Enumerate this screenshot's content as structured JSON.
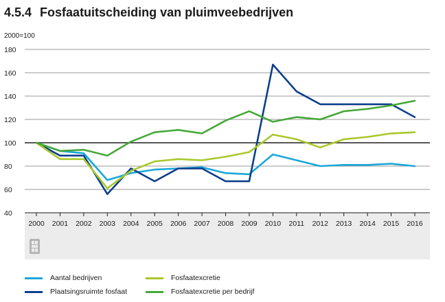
{
  "title": {
    "number": "4.5.4",
    "text": "Fosfaatuitscheiding van pluimveebedrijven"
  },
  "chart_data": {
    "type": "line",
    "ylabel": "2000=100",
    "xlabel": "",
    "ylim": [
      40,
      180
    ],
    "yticks": [
      40,
      60,
      80,
      100,
      120,
      140,
      160,
      180
    ],
    "reference_line": 100,
    "grid": "horizontal",
    "legend_position": "bottom",
    "x": [
      "2000",
      "2001",
      "2002",
      "2003",
      "2004",
      "2005",
      "2006",
      "2007",
      "2008",
      "2009",
      "2010",
      "2011",
      "2012",
      "2013",
      "2014",
      "2015",
      "2016"
    ],
    "series": [
      {
        "name": "Aantal bedrijven",
        "color": "#1aa7da",
        "values": [
          100,
          93,
          91,
          68,
          74,
          77,
          78,
          79,
          74,
          73,
          90,
          85,
          80,
          81,
          81,
          82,
          80
        ]
      },
      {
        "name": "Plaatsingsruimte fosfaat",
        "color": "#0b3f8c",
        "values": [
          100,
          89,
          89,
          56,
          78,
          67,
          78,
          78,
          67,
          67,
          167,
          144,
          133,
          133,
          133,
          133,
          122
        ]
      },
      {
        "name": "Fosfaatexcretie",
        "color": "#a8c82a",
        "values": [
          100,
          86,
          86,
          61,
          76,
          84,
          86,
          85,
          88,
          92,
          107,
          103,
          96,
          103,
          105,
          108,
          109
        ]
      },
      {
        "name": "Fosfaatexcretie per bedrijf",
        "color": "#45a838",
        "values": [
          100,
          93,
          94,
          89,
          101,
          109,
          111,
          108,
          119,
          127,
          118,
          122,
          120,
          127,
          129,
          132,
          136
        ]
      }
    ]
  },
  "logo_icon": "cbs-logo-icon"
}
